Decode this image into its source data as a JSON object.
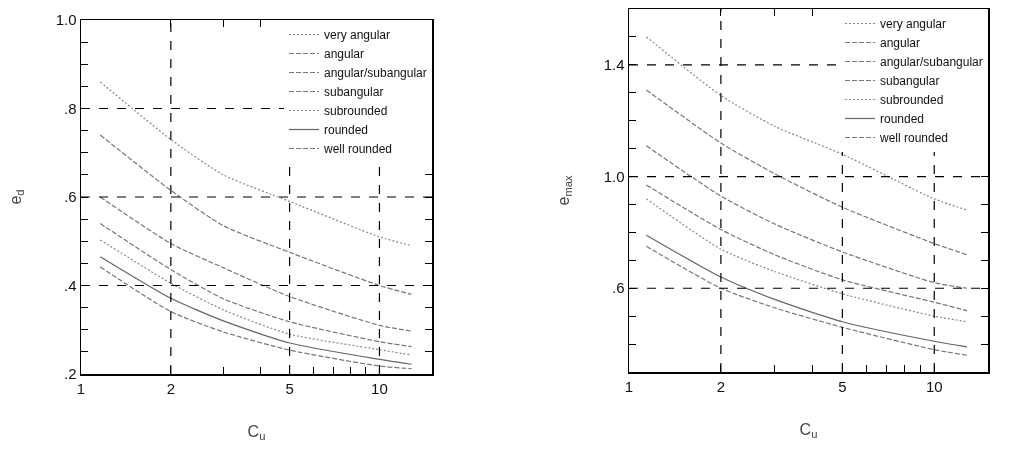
{
  "chart_data": [
    {
      "type": "line",
      "xlabel": "C$_{u}$",
      "ylabel": "e$_{d}$",
      "log": "x",
      "grid": true,
      "legend": "top right",
      "marker": "none",
      "xlim": [
        1,
        15
      ],
      "xticks": [
        1,
        2,
        {
          "value": 3,
          "label": null
        },
        {
          "value": 4,
          "label": null
        },
        5,
        {
          "value": 6,
          "label": null
        },
        {
          "value": 7,
          "label": null
        },
        {
          "value": 8,
          "label": null
        },
        {
          "value": 9,
          "label": null
        },
        10
      ],
      "ylim": [
        0.2,
        1.0
      ],
      "yticks": [
        {
          "value": 0.2,
          "label": ".2"
        },
        {
          "value": 0.25,
          "label": null
        },
        {
          "value": 0.3,
          "label": null
        },
        {
          "value": 0.35,
          "label": null
        },
        {
          "value": 0.4,
          "label": ".4"
        },
        {
          "value": 0.45,
          "label": null
        },
        {
          "value": 0.5,
          "label": null
        },
        {
          "value": 0.55,
          "label": null
        },
        {
          "value": 0.6,
          "label": ".6"
        },
        {
          "value": 0.65,
          "label": null
        },
        {
          "value": 0.7,
          "label": null
        },
        {
          "value": 0.75,
          "label": null
        },
        {
          "value": 0.8,
          "label": ".8"
        },
        {
          "value": 0.85,
          "label": null
        },
        {
          "value": 0.9,
          "label": null
        },
        {
          "value": 0.95,
          "label": null
        },
        {
          "value": 1.0,
          "label": "1.0"
        }
      ],
      "x": [
        1.16,
        2,
        3,
        5,
        10,
        12.8
      ],
      "series": [
        {
          "name": "very angular",
          "color": "#888888",
          "line_style": "dotted",
          "values": [
            0.86,
            0.73,
            0.65,
            0.59,
            0.51,
            0.49
          ]
        },
        {
          "name": "angular",
          "color": "#777777",
          "line_style": "dashed",
          "values": [
            0.74,
            0.615,
            0.535,
            0.475,
            0.4,
            0.38
          ]
        },
        {
          "name": "angular/subangular",
          "color": "#777777",
          "line_style": "dashed",
          "values": [
            0.6,
            0.495,
            0.44,
            0.375,
            0.31,
            0.297
          ]
        },
        {
          "name": "subangular",
          "color": "#777777",
          "line_style": "dashed",
          "values": [
            0.54,
            0.436,
            0.37,
            0.318,
            0.273,
            0.262
          ]
        },
        {
          "name": "subrounded",
          "color": "#888888",
          "line_style": "dotted",
          "values": [
            0.503,
            0.405,
            0.345,
            0.29,
            0.255,
            0.243
          ]
        },
        {
          "name": "rounded",
          "color": "#666666",
          "line_style": "solid",
          "values": [
            0.465,
            0.371,
            0.32,
            0.27,
            0.233,
            0.222
          ]
        },
        {
          "name": "well rounded",
          "color": "#777777",
          "line_style": "dashed",
          "values": [
            0.442,
            0.341,
            0.295,
            0.254,
            0.218,
            0.212
          ]
        }
      ]
    },
    {
      "type": "line",
      "xlabel": "C$_{u}$",
      "ylabel": "e$_{max}$",
      "log": "x",
      "grid": true,
      "legend": "top right",
      "marker": "none",
      "xlim": [
        1,
        15
      ],
      "xticks": [
        1,
        2,
        {
          "value": 3,
          "label": null
        },
        {
          "value": 4,
          "label": null
        },
        5,
        {
          "value": 6,
          "label": null
        },
        {
          "value": 7,
          "label": null
        },
        {
          "value": 8,
          "label": null
        },
        {
          "value": 9,
          "label": null
        },
        10
      ],
      "ylim": [
        0.3,
        1.6
      ],
      "yticks": [
        {
          "value": 0.4,
          "label": null
        },
        {
          "value": 0.5,
          "label": null
        },
        {
          "value": 0.6,
          "label": ".6"
        },
        {
          "value": 0.7,
          "label": null
        },
        {
          "value": 0.8,
          "label": null
        },
        {
          "value": 0.9,
          "label": null
        },
        {
          "value": 1.0,
          "label": "1.0"
        },
        {
          "value": 1.1,
          "label": null
        },
        {
          "value": 1.2,
          "label": null
        },
        {
          "value": 1.3,
          "label": null
        },
        1.4,
        {
          "value": 1.5,
          "label": null
        }
      ],
      "x": [
        1.14,
        2,
        3,
        5,
        10,
        12.8
      ],
      "series": [
        {
          "name": "very angular",
          "color": "#888888",
          "line_style": "dotted",
          "values": [
            1.5,
            1.29,
            1.18,
            1.08,
            0.92,
            0.88
          ]
        },
        {
          "name": "angular",
          "color": "#777777",
          "line_style": "dashed",
          "values": [
            1.31,
            1.12,
            1.01,
            0.89,
            0.76,
            0.72
          ]
        },
        {
          "name": "angular/subangular",
          "color": "#777777",
          "line_style": "dashed",
          "values": [
            1.11,
            0.93,
            0.83,
            0.73,
            0.62,
            0.6
          ]
        },
        {
          "name": "subangular",
          "color": "#777777",
          "line_style": "dashed",
          "values": [
            0.97,
            0.81,
            0.72,
            0.63,
            0.55,
            0.52
          ]
        },
        {
          "name": "subrounded",
          "color": "#888888",
          "line_style": "dotted",
          "values": [
            0.92,
            0.74,
            0.66,
            0.58,
            0.5,
            0.48
          ]
        },
        {
          "name": "rounded",
          "color": "#666666",
          "line_style": "solid",
          "values": [
            0.79,
            0.64,
            0.56,
            0.48,
            0.41,
            0.39
          ]
        },
        {
          "name": "well rounded",
          "color": "#777777",
          "line_style": "dashed",
          "values": [
            0.75,
            0.6,
            0.53,
            0.46,
            0.38,
            0.36
          ]
        }
      ]
    }
  ]
}
